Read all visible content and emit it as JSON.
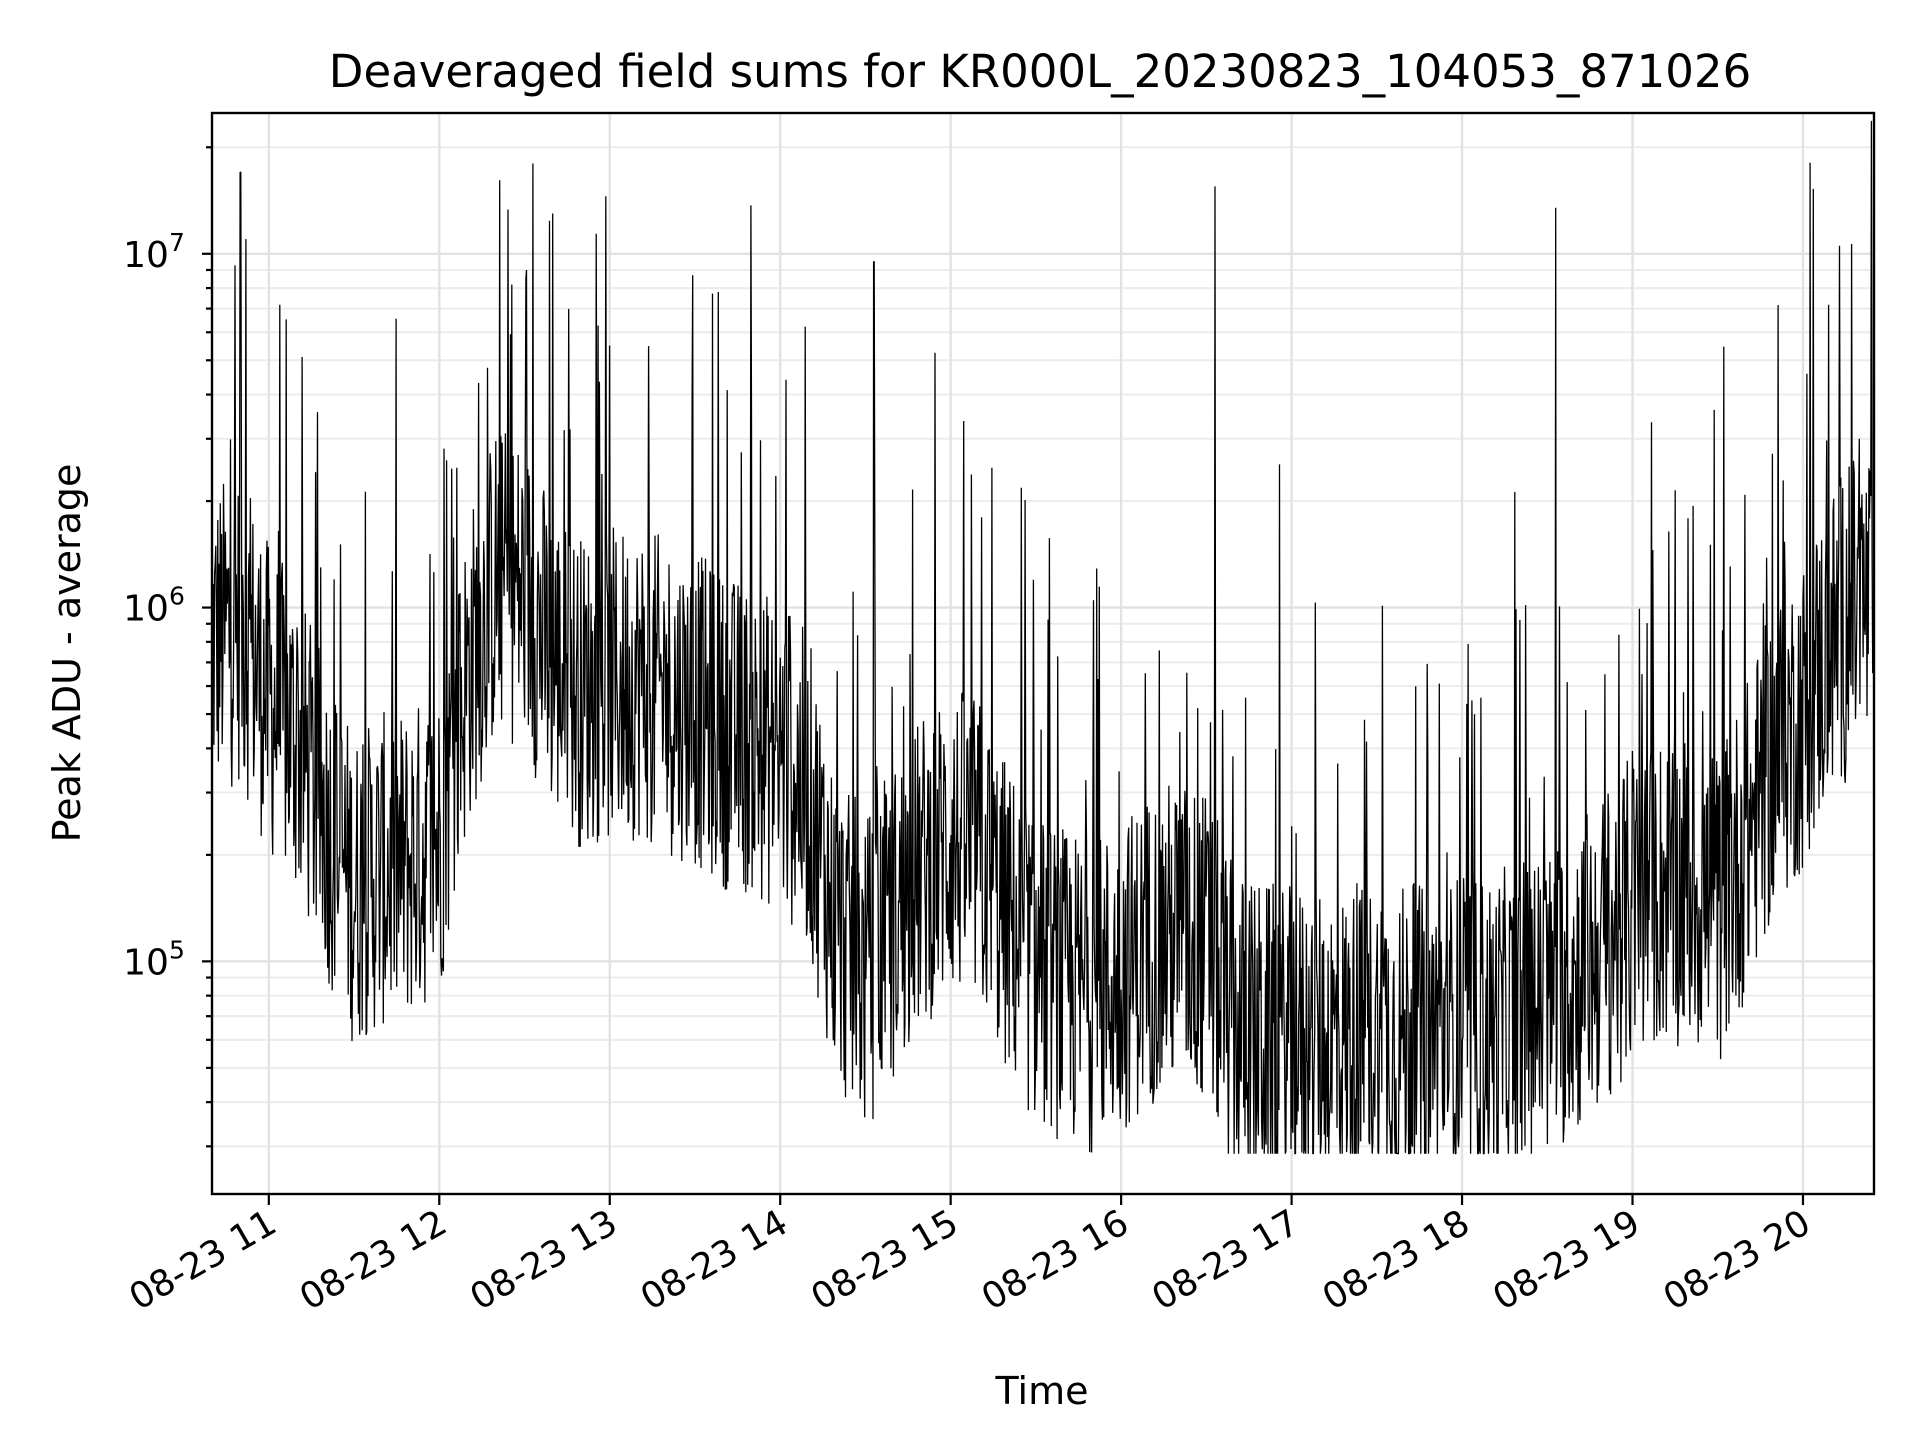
{
  "chart_data": {
    "type": "line",
    "title": "Deaveraged field sums for KR000L_20230823_104053_871026",
    "xlabel": "Time",
    "ylabel": "Peak ADU - average",
    "yscale": "log",
    "ylim": [
      22000,
      25000000
    ],
    "xlim": [
      "2023-08-23 10:40",
      "2023-08-23 20:25"
    ],
    "grid": "on (major and minor)",
    "x_tick_labels": [
      "08-23 11",
      "08-23 12",
      "08-23 13",
      "08-23 14",
      "08-23 15",
      "08-23 16",
      "08-23 17",
      "08-23 18",
      "08-23 19",
      "08-23 20"
    ],
    "y_tick_labels": [
      {
        "base": "10",
        "exp": "5"
      },
      {
        "base": "10",
        "exp": "6"
      },
      {
        "base": "10",
        "exp": "7"
      }
    ],
    "series": [
      {
        "color": "#000000",
        "x": [
          "2023-08-23 10:40",
          "2023-08-23 10:50",
          "2023-08-23 11:00",
          "2023-08-23 11:10",
          "2023-08-23 11:20",
          "2023-08-23 11:30",
          "2023-08-23 11:40",
          "2023-08-23 11:50",
          "2023-08-23 12:00",
          "2023-08-23 12:10",
          "2023-08-23 12:20",
          "2023-08-23 12:30",
          "2023-08-23 12:40",
          "2023-08-23 12:50",
          "2023-08-23 13:00",
          "2023-08-23 13:10",
          "2023-08-23 13:20",
          "2023-08-23 13:30",
          "2023-08-23 13:40",
          "2023-08-23 13:50",
          "2023-08-23 14:00",
          "2023-08-23 14:10",
          "2023-08-23 14:20",
          "2023-08-23 14:30",
          "2023-08-23 14:40",
          "2023-08-23 14:50",
          "2023-08-23 15:00",
          "2023-08-23 15:10",
          "2023-08-23 15:20",
          "2023-08-23 15:30",
          "2023-08-23 15:40",
          "2023-08-23 15:50",
          "2023-08-23 16:00",
          "2023-08-23 16:10",
          "2023-08-23 16:20",
          "2023-08-23 16:30",
          "2023-08-23 16:40",
          "2023-08-23 16:50",
          "2023-08-23 17:00",
          "2023-08-23 17:10",
          "2023-08-23 17:20",
          "2023-08-23 17:30",
          "2023-08-23 17:40",
          "2023-08-23 17:50",
          "2023-08-23 18:00",
          "2023-08-23 18:10",
          "2023-08-23 18:20",
          "2023-08-23 18:30",
          "2023-08-23 18:40",
          "2023-08-23 18:50",
          "2023-08-23 19:00",
          "2023-08-23 19:10",
          "2023-08-23 19:20",
          "2023-08-23 19:30",
          "2023-08-23 19:40",
          "2023-08-23 19:50",
          "2023-08-23 20:00",
          "2023-08-23 20:10",
          "2023-08-23 20:20"
        ],
        "y": [
          800000,
          900000,
          550000,
          420000,
          250000,
          160000,
          180000,
          190000,
          220000,
          650000,
          1200000,
          1100000,
          700000,
          580000,
          600000,
          620000,
          560000,
          520000,
          450000,
          420000,
          380000,
          300000,
          120000,
          90000,
          130000,
          180000,
          220000,
          200000,
          130000,
          95000,
          85000,
          80000,
          90000,
          110000,
          120000,
          110000,
          65000,
          60000,
          58000,
          60000,
          58000,
          62000,
          60000,
          58000,
          65000,
          62000,
          70000,
          75000,
          90000,
          110000,
          140000,
          160000,
          160000,
          140000,
          220000,
          380000,
          500000,
          800000,
          1000000
        ],
        "spikes": [
          {
            "x": "2023-08-23 10:50",
            "y": 17000000
          },
          {
            "x": "2023-08-23 10:52",
            "y": 11000000
          },
          {
            "x": "2023-08-23 12:33",
            "y": 18000000
          },
          {
            "x": "2023-08-23 12:40",
            "y": 13000000
          },
          {
            "x": "2023-08-23 13:00",
            "y": 5500000
          },
          {
            "x": "2023-08-23 14:33",
            "y": 9500000
          },
          {
            "x": "2023-08-23 16:33",
            "y": 15500000
          },
          {
            "x": "2023-08-23 18:33",
            "y": 13500000
          },
          {
            "x": "2023-08-23 20:13",
            "y": 2200000
          }
        ]
      }
    ]
  }
}
